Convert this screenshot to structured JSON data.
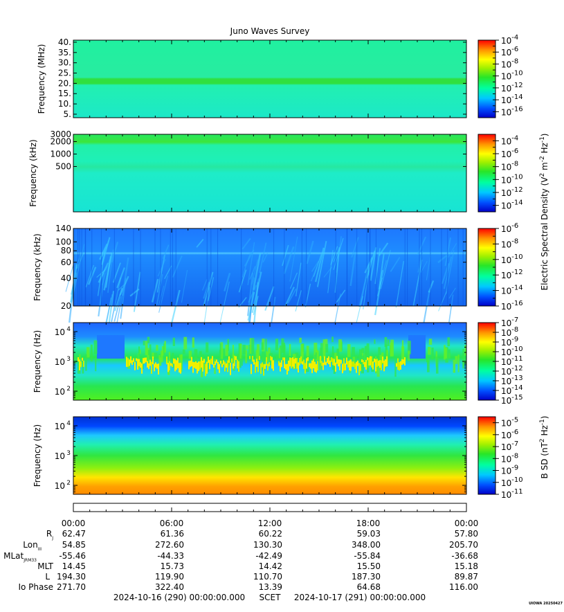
{
  "chart_data": {
    "type": "heatmap",
    "title": "Juno Waves Survey",
    "panels": [
      {
        "id": "p1",
        "ylabel": "Frequency (MHz)",
        "yticks": [
          "40.",
          "35.",
          "30.",
          "25.",
          "20.",
          "15.",
          "10.",
          "5."
        ],
        "colorbar_ticks": [
          "10-4",
          "10-6",
          "10-8",
          "10-10",
          "10-12",
          "10-14",
          "10-16"
        ],
        "colorbar_exponents": [
          "-4",
          "-6",
          "-8",
          "-10",
          "-12",
          "-14",
          "-16"
        ],
        "colorbar_range": [
          -17,
          -4
        ]
      },
      {
        "id": "p2",
        "ylabel": "Frequency (kHz)",
        "yticks": [
          "3000",
          "2000",
          "1000",
          "500"
        ],
        "colorbar_exponents": [
          "-4",
          "-6",
          "-8",
          "-10",
          "-12",
          "-14"
        ],
        "colorbar_range": [
          -15,
          -3
        ]
      },
      {
        "id": "p3",
        "ylabel": "Frequency (kHz)",
        "yticks": [
          "140",
          "100",
          "80",
          "60",
          "40",
          "20"
        ],
        "colorbar_exponents": [
          "-6",
          "-8",
          "-10",
          "-12",
          "-14",
          "-16"
        ],
        "colorbar_range": [
          -16,
          -6
        ]
      },
      {
        "id": "p4",
        "ylabel": "Frequency (Hz)",
        "ytick_exponents": [
          "4",
          "3",
          "2"
        ],
        "colorbar_exponents": [
          "-7",
          "-8",
          "-9",
          "-10",
          "-11",
          "-12",
          "-13",
          "-14",
          "-15"
        ],
        "colorbar_range": [
          -15,
          -7
        ]
      },
      {
        "id": "p5",
        "ylabel": "Frequency (Hz)",
        "ytick_exponents": [
          "4",
          "3",
          "2"
        ],
        "colorbar_exponents": [
          "-5",
          "-6",
          "-7",
          "-8",
          "-9",
          "-10",
          "-11"
        ],
        "colorbar_range": [
          -11,
          -4.5
        ]
      }
    ],
    "colorbar_label_e": "Electric Spectral Density (V",
    "colorbar_label_e_sup1": "2",
    "colorbar_label_e_mid": " m",
    "colorbar_label_e_sup2": "-2",
    "colorbar_label_e_mid2": " Hz",
    "colorbar_label_e_sup3": "-1",
    "colorbar_label_e_end": ")",
    "colorbar_label_b": "B SD (nT",
    "colorbar_label_b_sup1": "2",
    "colorbar_label_b_mid": " Hz",
    "colorbar_label_b_sup2": "-1",
    "colorbar_label_b_end": ")",
    "x_ticks": [
      "00:00",
      "06:00",
      "12:00",
      "18:00",
      "00:00"
    ],
    "ephemeris": [
      {
        "label": "R",
        "sub": "J",
        "values": [
          "62.47",
          "61.36",
          "60.22",
          "59.03",
          "57.80"
        ]
      },
      {
        "label": "Lon",
        "sub": "III",
        "values": [
          "54.85",
          "272.60",
          "130.30",
          "348.00",
          "205.70"
        ]
      },
      {
        "label": "MLat",
        "sub": "JRM33",
        "values": [
          "-55.46",
          "-44.33",
          "-42.49",
          "-55.84",
          "-36.68"
        ]
      },
      {
        "label": "MLT",
        "sub": "",
        "values": [
          "14.45",
          "15.73",
          "14.42",
          "15.50",
          "15.18"
        ]
      },
      {
        "label": "L",
        "sub": "",
        "values": [
          "194.30",
          "119.90",
          "110.70",
          "187.30",
          "89.87"
        ]
      },
      {
        "label": "Io Phase",
        "sub": "",
        "values": [
          "271.70",
          "322.40",
          "13.39",
          "64.68",
          "116.00"
        ]
      }
    ],
    "time_range": {
      "start": "2024-10-16 (290) 00:00:00.000",
      "label": "SCET",
      "end": "2024-10-17 (291) 00:00:00.000"
    },
    "footer_tag": "UIOWA 20250427"
  }
}
